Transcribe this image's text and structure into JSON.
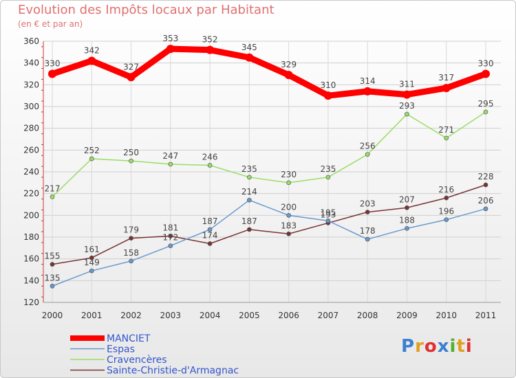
{
  "header": {
    "title": "Evolution des Impôts locaux par Habitant",
    "subtitle": "(en € et par an)"
  },
  "logo": {
    "text": "Proxiti",
    "colors": [
      "#3a7fd0",
      "#e0a020",
      "#e03030",
      "#3a7fd0",
      "#50b030",
      "#e0a020",
      "#e03030"
    ]
  },
  "chart_data": {
    "type": "line",
    "x": [
      "2000",
      "2001",
      "2002",
      "2003",
      "2004",
      "2005",
      "2006",
      "2007",
      "2008",
      "2009",
      "2010",
      "2011"
    ],
    "ylim": [
      120,
      360
    ],
    "yticks": [
      120,
      140,
      160,
      180,
      200,
      220,
      240,
      260,
      280,
      300,
      320,
      340,
      360
    ],
    "grid": true,
    "legend_position": "bottom-left",
    "series": [
      {
        "name": "MANCIET",
        "color": "#ff0000",
        "values": [
          330,
          342,
          327,
          353,
          352,
          345,
          329,
          310,
          314,
          311,
          317,
          330
        ]
      },
      {
        "name": "Espas",
        "color": "#6699cc",
        "values": [
          135,
          149,
          158,
          172,
          187,
          214,
          200,
          195,
          178,
          188,
          196,
          206
        ]
      },
      {
        "name": "Cravencères",
        "color": "#99dd66",
        "values": [
          217,
          252,
          250,
          247,
          246,
          235,
          230,
          235,
          256,
          293,
          271,
          295
        ]
      },
      {
        "name": "Sainte-Christie-d'Armagnac",
        "color": "#773333",
        "values": [
          155,
          161,
          179,
          181,
          174,
          187,
          183,
          193,
          203,
          207,
          216,
          228
        ]
      }
    ]
  }
}
